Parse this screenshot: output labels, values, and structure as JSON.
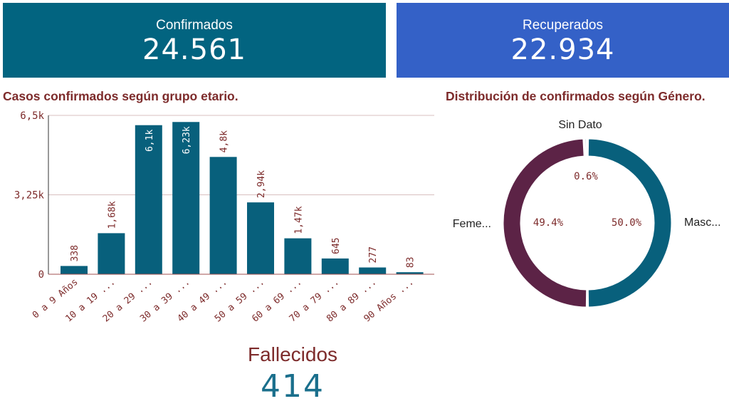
{
  "kpis": {
    "confirmados": {
      "label": "Confirmados",
      "value": "24.561"
    },
    "recuperados": {
      "label": "Recuperados",
      "value": "22.934"
    }
  },
  "fallecidos": {
    "label": "Fallecidos",
    "value": "414"
  },
  "colors": {
    "teal": "#026480",
    "blue": "#3461c7",
    "bar": "#08607c",
    "female": "#5c2346",
    "title": "#7d2b2b",
    "grid": "#d8bfbf"
  },
  "chart_data": [
    {
      "type": "bar",
      "title": "Casos confirmados según grupo etario.",
      "categories": [
        "0 a 9 Años",
        "10 a 19 ...",
        "20 a 29 ...",
        "30 a 39 ...",
        "40 a 49 ...",
        "50 a 59 ...",
        "60 a 69 ...",
        "70 a 79 ...",
        "80 a 89 ...",
        "90 Años ..."
      ],
      "values": [
        338,
        1680,
        6100,
        6230,
        4800,
        2940,
        1470,
        645,
        277,
        83
      ],
      "data_labels": [
        "338",
        "1,68k",
        "6,1k",
        "6,23k",
        "4,8k",
        "2,94k",
        "1,47k",
        "645",
        "277",
        "83"
      ],
      "yticks": [
        {
          "value": 0,
          "label": "0"
        },
        {
          "value": 3250,
          "label": "3,25k"
        },
        {
          "value": 6500,
          "label": "6,5k"
        }
      ],
      "ylim": [
        0,
        6500
      ],
      "grid": true,
      "xlabel": "",
      "ylabel": ""
    },
    {
      "type": "pie",
      "title": "Distribución de confirmados según Género.",
      "donut": true,
      "slices": [
        {
          "label": "Masc...",
          "value": 50.0,
          "display": "50.0%",
          "color": "#08607c"
        },
        {
          "label": "Feme...",
          "value": 49.4,
          "display": "49.4%",
          "color": "#5c2346"
        },
        {
          "label": "Sin Dato",
          "value": 0.6,
          "display": "0.6%",
          "color": "#08607c"
        }
      ]
    }
  ]
}
